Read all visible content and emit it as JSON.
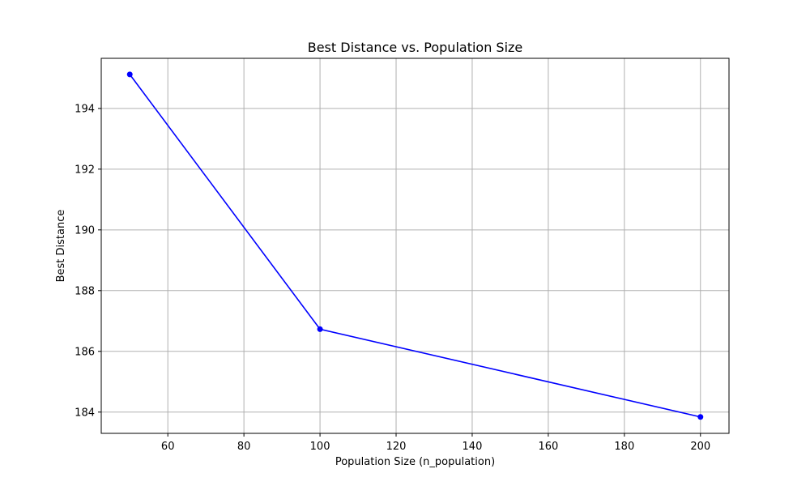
{
  "chart_data": {
    "type": "line",
    "title": "Best Distance vs. Population Size",
    "xlabel": "Population Size (n_population)",
    "ylabel": "Best Distance",
    "x": [
      50,
      100,
      200
    ],
    "series": [
      {
        "values": [
          195.12,
          186.73,
          183.84
        ],
        "color": "#0000ff",
        "marker": "circle"
      }
    ],
    "xlim": [
      42.5,
      207.5
    ],
    "ylim": [
      183.3,
      195.65
    ],
    "xticks": [
      60,
      80,
      100,
      120,
      140,
      160,
      180,
      200
    ],
    "yticks": [
      184,
      186,
      188,
      190,
      192,
      194
    ],
    "grid": true
  }
}
